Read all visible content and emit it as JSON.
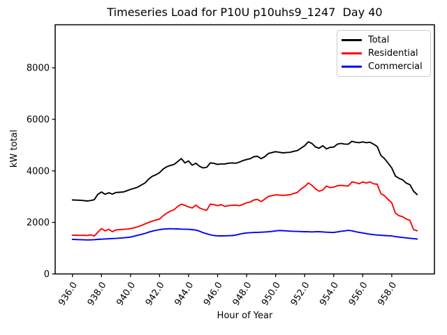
{
  "figure": {
    "background": "#ffffff"
  },
  "chart_data": {
    "type": "line",
    "title": "Timeseries Load for P10U p10uhs9_1247  Day 40",
    "xlabel": "Hour of Year",
    "ylabel": "kW total",
    "xlim": [
      934.81,
      960.94
    ],
    "ylim": [
      0,
      9670
    ],
    "grid": false,
    "xticks": [
      936,
      938,
      940,
      942,
      944,
      946,
      948,
      950,
      952,
      954,
      956,
      958
    ],
    "xtick_labels": [
      "936.0",
      "938.0",
      "940.0",
      "942.0",
      "944.0",
      "946.0",
      "948.0",
      "950.0",
      "952.0",
      "954.0",
      "956.0",
      "958.0"
    ],
    "yticks": [
      0,
      2000,
      4000,
      6000,
      8000
    ],
    "ytick_labels": [
      "0",
      "2000",
      "4000",
      "6000",
      "8000"
    ],
    "legend": {
      "position": "upper right",
      "entries": [
        "Total",
        "Residential",
        "Commercial"
      ]
    },
    "x": [
      936.0,
      936.25,
      936.5,
      936.75,
      937.0,
      937.25,
      937.5,
      937.75,
      938.0,
      938.25,
      938.5,
      938.75,
      939.0,
      939.25,
      939.5,
      939.75,
      940.0,
      940.25,
      940.5,
      940.75,
      941.0,
      941.25,
      941.5,
      941.75,
      942.0,
      942.25,
      942.5,
      942.75,
      943.0,
      943.25,
      943.5,
      943.75,
      944.0,
      944.25,
      944.5,
      944.75,
      945.0,
      945.25,
      945.5,
      945.75,
      946.0,
      946.25,
      946.5,
      946.75,
      947.0,
      947.25,
      947.5,
      947.75,
      948.0,
      948.25,
      948.5,
      948.75,
      949.0,
      949.25,
      949.5,
      949.75,
      950.0,
      950.25,
      950.5,
      950.75,
      951.0,
      951.25,
      951.5,
      951.75,
      952.0,
      952.25,
      952.5,
      952.75,
      953.0,
      953.25,
      953.5,
      953.75,
      954.0,
      954.25,
      954.5,
      954.75,
      955.0,
      955.25,
      955.5,
      955.75,
      956.0,
      956.25,
      956.5,
      956.75,
      957.0,
      957.25,
      957.5,
      957.75,
      958.0,
      958.25,
      958.5,
      958.75,
      959.0,
      959.25,
      959.5,
      959.75
    ],
    "series": [
      {
        "name": "Total",
        "color": "#000000",
        "values": [
          2870,
          2865,
          2860,
          2850,
          2830,
          2850,
          2880,
          3090,
          3180,
          3090,
          3150,
          3100,
          3160,
          3170,
          3180,
          3230,
          3280,
          3320,
          3370,
          3450,
          3530,
          3680,
          3790,
          3850,
          3930,
          4070,
          4160,
          4210,
          4250,
          4360,
          4475,
          4310,
          4385,
          4220,
          4295,
          4180,
          4115,
          4140,
          4310,
          4290,
          4250,
          4270,
          4270,
          4300,
          4310,
          4295,
          4340,
          4400,
          4440,
          4475,
          4550,
          4565,
          4475,
          4550,
          4675,
          4710,
          4745,
          4720,
          4700,
          4710,
          4720,
          4760,
          4790,
          4880,
          4975,
          5125,
          5065,
          4925,
          4880,
          4975,
          4855,
          4910,
          4925,
          5035,
          5065,
          5040,
          5035,
          5150,
          5110,
          5095,
          5125,
          5095,
          5110,
          5035,
          4945,
          4600,
          4475,
          4300,
          4115,
          3800,
          3710,
          3650,
          3525,
          3465,
          3210,
          3080
        ]
      },
      {
        "name": "Residential",
        "color": "#ff0000",
        "values": [
          1500,
          1505,
          1495,
          1500,
          1490,
          1520,
          1470,
          1620,
          1760,
          1670,
          1730,
          1640,
          1710,
          1720,
          1730,
          1740,
          1760,
          1790,
          1830,
          1880,
          1940,
          2000,
          2050,
          2090,
          2130,
          2260,
          2360,
          2440,
          2490,
          2620,
          2710,
          2660,
          2600,
          2560,
          2670,
          2560,
          2505,
          2470,
          2710,
          2690,
          2650,
          2690,
          2620,
          2650,
          2665,
          2670,
          2650,
          2700,
          2760,
          2790,
          2870,
          2890,
          2810,
          2900,
          3010,
          3040,
          3070,
          3060,
          3050,
          3060,
          3075,
          3120,
          3165,
          3300,
          3390,
          3530,
          3440,
          3300,
          3210,
          3260,
          3410,
          3350,
          3370,
          3420,
          3440,
          3420,
          3410,
          3570,
          3545,
          3500,
          3570,
          3530,
          3570,
          3500,
          3480,
          3120,
          3030,
          2890,
          2760,
          2360,
          2260,
          2220,
          2130,
          2080,
          1720,
          1675
        ]
      },
      {
        "name": "Commercial",
        "color": "#0000ff",
        "values": [
          1340,
          1335,
          1330,
          1325,
          1320,
          1322,
          1330,
          1340,
          1350,
          1358,
          1365,
          1372,
          1380,
          1390,
          1400,
          1415,
          1430,
          1465,
          1500,
          1535,
          1570,
          1620,
          1660,
          1690,
          1720,
          1740,
          1750,
          1755,
          1750,
          1748,
          1740,
          1735,
          1730,
          1720,
          1700,
          1660,
          1600,
          1560,
          1520,
          1490,
          1478,
          1475,
          1480,
          1485,
          1490,
          1510,
          1540,
          1570,
          1590,
          1600,
          1610,
          1615,
          1620,
          1628,
          1635,
          1650,
          1670,
          1685,
          1680,
          1670,
          1660,
          1655,
          1650,
          1645,
          1640,
          1635,
          1630,
          1635,
          1640,
          1630,
          1620,
          1615,
          1610,
          1630,
          1655,
          1670,
          1690,
          1675,
          1640,
          1615,
          1590,
          1565,
          1540,
          1525,
          1510,
          1500,
          1490,
          1482,
          1475,
          1450,
          1430,
          1415,
          1400,
          1385,
          1370,
          1355
        ]
      }
    ]
  }
}
